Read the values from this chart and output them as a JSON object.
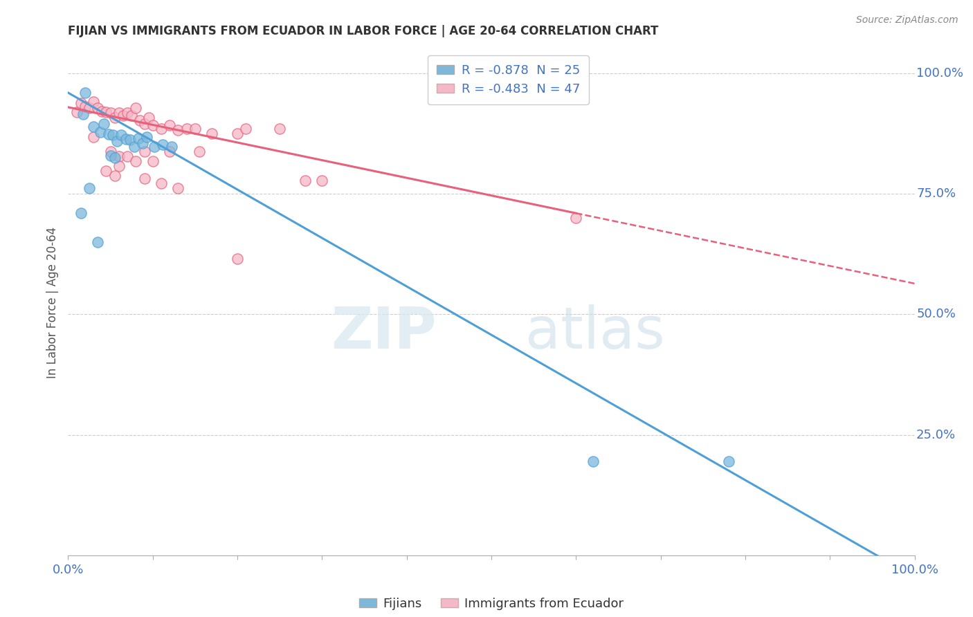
{
  "title": "FIJIAN VS IMMIGRANTS FROM ECUADOR IN LABOR FORCE | AGE 20-64 CORRELATION CHART",
  "source": "Source: ZipAtlas.com",
  "ylabel_label": "In Labor Force | Age 20-64",
  "right_yticks": [
    "100.0%",
    "75.0%",
    "50.0%",
    "25.0%"
  ],
  "right_ytick_vals": [
    1.0,
    0.75,
    0.5,
    0.25
  ],
  "watermark_zip": "ZIP",
  "watermark_atlas": "atlas",
  "legend_entries": [
    {
      "label": "R = -0.878  N = 25",
      "color": "#7db8db"
    },
    {
      "label": "R = -0.483  N = 47",
      "color": "#f4b8c8"
    }
  ],
  "bottom_legend": [
    "Fijians",
    "Immigrants from Ecuador"
  ],
  "blue_color": "#7db8db",
  "pink_color": "#f4b8c8",
  "blue_line_color": "#4d9fd6",
  "pink_line_color": "#e8607a",
  "blue_scatter": [
    [
      0.02,
      0.96
    ],
    [
      0.018,
      0.915
    ],
    [
      0.03,
      0.89
    ],
    [
      0.038,
      0.878
    ],
    [
      0.042,
      0.896
    ],
    [
      0.048,
      0.874
    ],
    [
      0.053,
      0.872
    ],
    [
      0.058,
      0.86
    ],
    [
      0.063,
      0.872
    ],
    [
      0.068,
      0.864
    ],
    [
      0.073,
      0.862
    ],
    [
      0.078,
      0.848
    ],
    [
      0.083,
      0.865
    ],
    [
      0.088,
      0.856
    ],
    [
      0.093,
      0.868
    ],
    [
      0.102,
      0.848
    ],
    [
      0.112,
      0.852
    ],
    [
      0.122,
      0.848
    ],
    [
      0.015,
      0.71
    ],
    [
      0.025,
      0.762
    ],
    [
      0.035,
      0.65
    ],
    [
      0.62,
      0.195
    ],
    [
      0.78,
      0.195
    ],
    [
      0.05,
      0.83
    ],
    [
      0.055,
      0.825
    ]
  ],
  "pink_scatter": [
    [
      0.01,
      0.92
    ],
    [
      0.015,
      0.938
    ],
    [
      0.02,
      0.932
    ],
    [
      0.025,
      0.928
    ],
    [
      0.03,
      0.942
    ],
    [
      0.035,
      0.928
    ],
    [
      0.04,
      0.922
    ],
    [
      0.045,
      0.92
    ],
    [
      0.05,
      0.918
    ],
    [
      0.055,
      0.908
    ],
    [
      0.06,
      0.918
    ],
    [
      0.065,
      0.912
    ],
    [
      0.07,
      0.918
    ],
    [
      0.075,
      0.912
    ],
    [
      0.08,
      0.928
    ],
    [
      0.085,
      0.902
    ],
    [
      0.09,
      0.896
    ],
    [
      0.095,
      0.908
    ],
    [
      0.1,
      0.892
    ],
    [
      0.11,
      0.886
    ],
    [
      0.12,
      0.892
    ],
    [
      0.13,
      0.882
    ],
    [
      0.14,
      0.886
    ],
    [
      0.15,
      0.886
    ],
    [
      0.17,
      0.876
    ],
    [
      0.2,
      0.876
    ],
    [
      0.21,
      0.886
    ],
    [
      0.25,
      0.886
    ],
    [
      0.03,
      0.868
    ],
    [
      0.05,
      0.838
    ],
    [
      0.06,
      0.828
    ],
    [
      0.06,
      0.808
    ],
    [
      0.07,
      0.828
    ],
    [
      0.08,
      0.818
    ],
    [
      0.09,
      0.838
    ],
    [
      0.1,
      0.818
    ],
    [
      0.12,
      0.838
    ],
    [
      0.155,
      0.838
    ],
    [
      0.3,
      0.778
    ],
    [
      0.28,
      0.778
    ],
    [
      0.6,
      0.7
    ],
    [
      0.2,
      0.615
    ],
    [
      0.045,
      0.798
    ],
    [
      0.055,
      0.788
    ],
    [
      0.09,
      0.782
    ],
    [
      0.11,
      0.772
    ],
    [
      0.13,
      0.762
    ]
  ],
  "blue_line": [
    [
      0.0,
      0.96
    ],
    [
      1.0,
      -0.045
    ]
  ],
  "pink_line_solid": [
    [
      0.0,
      0.93
    ],
    [
      0.6,
      0.71
    ]
  ],
  "pink_line_dashed": [
    [
      0.6,
      0.71
    ],
    [
      1.0,
      0.564
    ]
  ],
  "xlim": [
    0.0,
    1.0
  ],
  "ylim": [
    0.0,
    1.05
  ],
  "grid_color": "#cccccc",
  "background_color": "#ffffff",
  "title_color": "#333333",
  "axis_color": "#4472c4",
  "right_label_color": "#4472c4"
}
